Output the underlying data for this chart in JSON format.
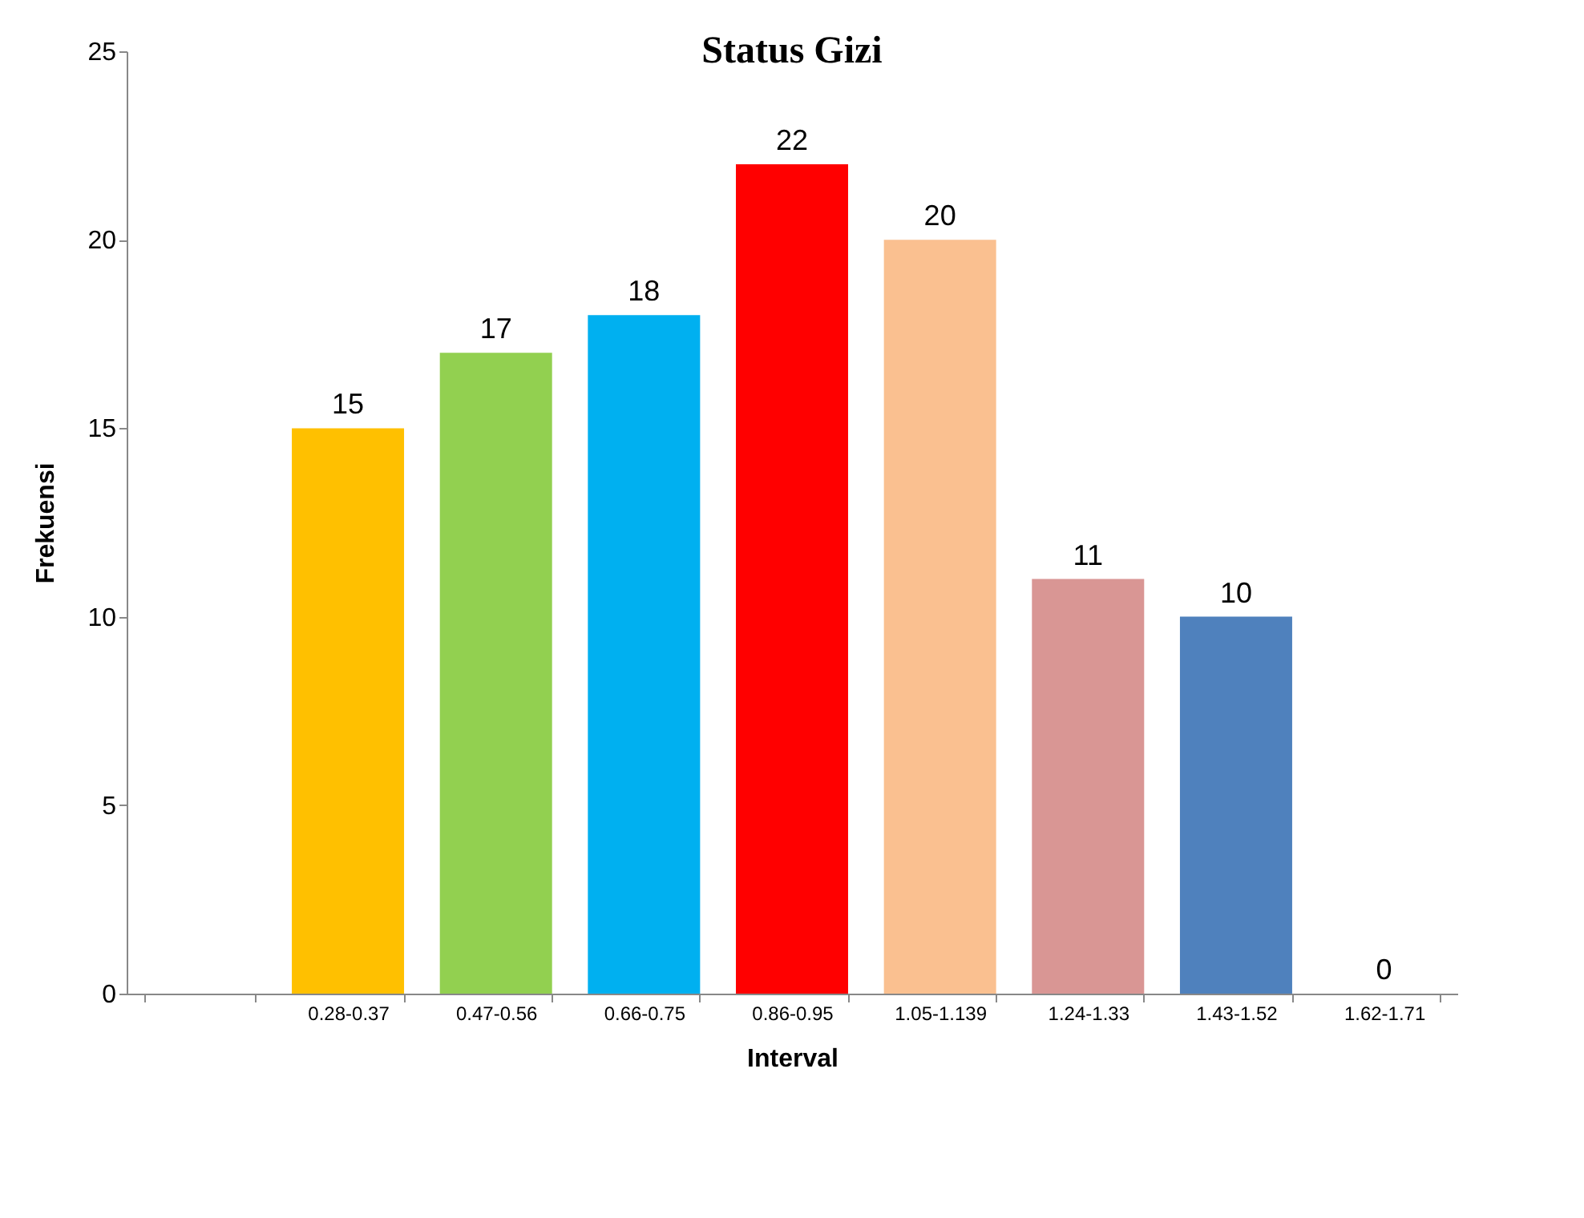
{
  "chart_data": {
    "type": "bar",
    "title": "Status Gizi",
    "xlabel": "Interval",
    "ylabel": "Frekuensi",
    "categories": [
      null,
      "0.28-0.37",
      "0.47-0.56",
      "0.66-0.75",
      "0.86-0.95",
      "1.05-1.139",
      "1.24-1.33",
      "1.43-1.52",
      "1.62-1.71"
    ],
    "values": [
      null,
      15,
      17,
      18,
      22,
      20,
      11,
      10,
      0
    ],
    "colors": [
      null,
      "#ffc000",
      "#92d050",
      "#00b0f0",
      "#ff0000",
      "#fac090",
      "#d99694",
      "#4f81bd",
      "#8064a2"
    ],
    "ylim": [
      0,
      25
    ],
    "yticks": [
      0,
      5,
      10,
      15,
      20,
      25
    ],
    "data_labels": true
  }
}
